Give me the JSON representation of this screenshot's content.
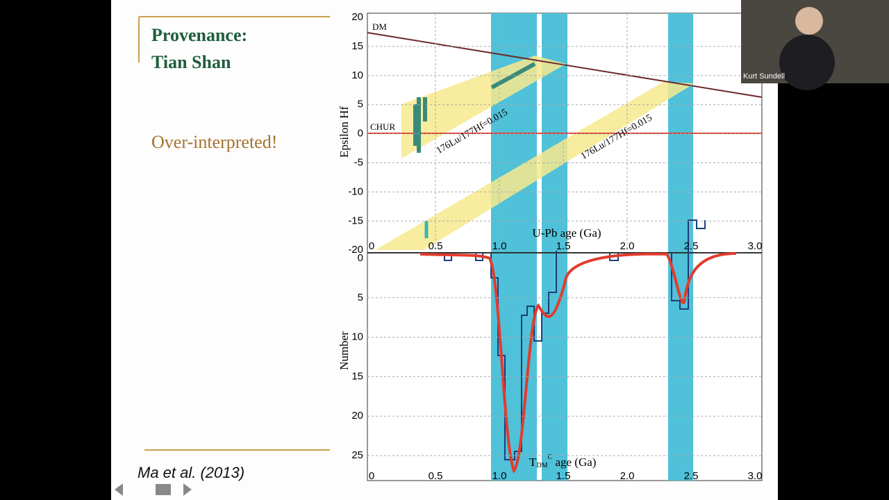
{
  "slide": {
    "title_line1": "Provenance:",
    "title_line2": "Tian Shan",
    "callout": "Over-interpreted!",
    "citation": "Ma et al. (2013)"
  },
  "figure": {
    "upper_y_label": "Epsilon Hf",
    "upper_y_ticks": [
      "20",
      "15",
      "10",
      "5",
      "0",
      "-5",
      "-10",
      "-15",
      "-20"
    ],
    "upper_x_label": "U-Pb age (Ga)",
    "x_ticks": [
      "0",
      "0.5",
      "1.0",
      "1.5",
      "2.0",
      "2.5",
      "3.0"
    ],
    "lower_y_label": "Number",
    "lower_y_ticks": [
      "0",
      "5",
      "10",
      "15",
      "20",
      "25"
    ],
    "lower_x_label_main": "T",
    "lower_x_label_sub": "DM",
    "lower_x_label_sup": "C",
    "lower_x_label_end": " age (Ga)",
    "dm_label": "DM",
    "chur_label": "CHUR",
    "band_label_upper": "176Lu/177Hf=0.015",
    "band_label_lower": "176Lu/177Hf=0.015"
  },
  "webcam": {
    "name": "Kurt Sundell"
  }
}
